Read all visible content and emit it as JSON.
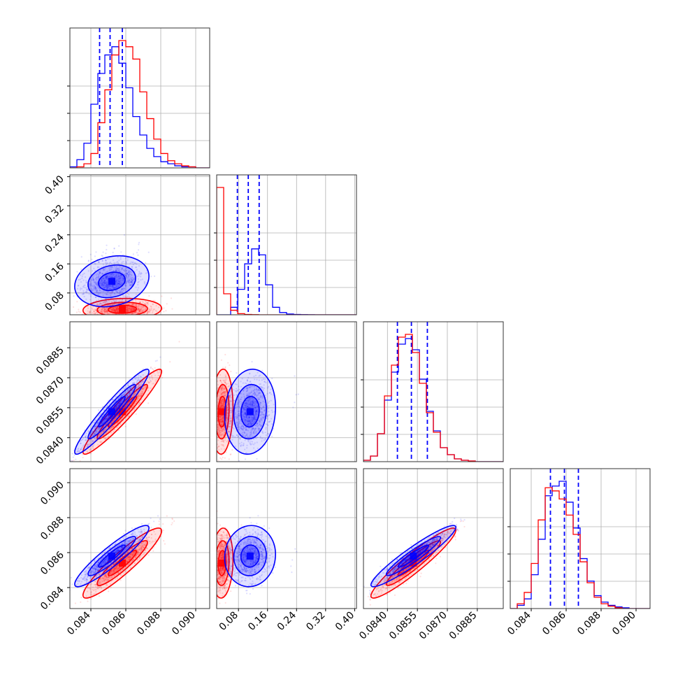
{
  "colors": {
    "blue": "#0000ff",
    "red": "#ff0000",
    "grid": "#b0b0b0",
    "axis": "#000000"
  },
  "chart_data": {
    "type": "corner",
    "grid": true,
    "n_params": 4,
    "params": [
      {
        "range": [
          0.0828,
          0.0908
        ],
        "ticks": [
          "0.084",
          "0.086",
          "0.088",
          "0.090"
        ],
        "tick_values": [
          0.084,
          0.086,
          0.088,
          0.09
        ]
      },
      {
        "range": [
          0.02,
          0.405
        ],
        "ticks": [
          "0.08",
          "0.16",
          "0.24",
          "0.32",
          "0.40"
        ],
        "tick_values": [
          0.08,
          0.16,
          0.24,
          0.32,
          0.4
        ]
      },
      {
        "range": [
          0.0828,
          0.0898
        ],
        "ticks": [
          "0.0840",
          "0.0855",
          "0.0870",
          "0.0885"
        ],
        "tick_values": [
          0.084,
          0.0855,
          0.087,
          0.0885
        ]
      },
      {
        "range": [
          0.0828,
          0.0908
        ],
        "ticks": [
          "0.084",
          "0.086",
          "0.088",
          "0.090"
        ],
        "tick_values": [
          0.084,
          0.086,
          0.088,
          0.09
        ]
      }
    ],
    "series": [
      {
        "color": "blue",
        "means": [
          0.0852,
          0.112,
          0.0853,
          0.0858
        ],
        "sds": [
          0.00085,
          0.028,
          0.00085,
          0.0007
        ],
        "quantiles": [
          [
            0.0845,
            0.0851,
            0.0858
          ],
          [
            0.077,
            0.107,
            0.137
          ],
          [
            0.0845,
            0.0852,
            0.086
          ],
          [
            0.0851,
            0.0859,
            0.0867
          ]
        ],
        "hist": [
          [
            1,
            8,
            24,
            62,
            92,
            110,
            118,
            102,
            78,
            50,
            32,
            19,
            11,
            6,
            4,
            2,
            1,
            1,
            0,
            0
          ],
          [
            0,
            0,
            10,
            34,
            68,
            88,
            80,
            40,
            10,
            3,
            1,
            0.5,
            0.2,
            0.1,
            0,
            0,
            0,
            0,
            0,
            0
          ],
          [
            2,
            8,
            40,
            88,
            128,
            168,
            176,
            160,
            118,
            72,
            44,
            20,
            10,
            4,
            2,
            1,
            0,
            0,
            0,
            0
          ],
          [
            0,
            4,
            12,
            42,
            86,
            140,
            152,
            158,
            132,
            100,
            62,
            34,
            16,
            8,
            4,
            2,
            1,
            0,
            0,
            0
          ]
        ]
      },
      {
        "color": "red",
        "means": [
          0.0858,
          0.035,
          0.0853,
          0.0854
        ],
        "sds": [
          0.0009,
          0.012,
          0.00085,
          0.0008
        ],
        "hist": [
          [
            0,
            1,
            4,
            14,
            44,
            76,
            110,
            124,
            118,
            106,
            74,
            48,
            28,
            14,
            7,
            4,
            2,
            1,
            0,
            0
          ],
          [
            170,
            28,
            6,
            1.5,
            0.5,
            0.2,
            0,
            0,
            0,
            0,
            0,
            0,
            0,
            0,
            0,
            0,
            0,
            0,
            0,
            0
          ],
          [
            2,
            8,
            40,
            94,
            138,
            178,
            182,
            156,
            112,
            70,
            42,
            20,
            10,
            4,
            2,
            1,
            0,
            0,
            0,
            0
          ],
          [
            0,
            6,
            20,
            56,
            110,
            150,
            146,
            136,
            116,
            92,
            58,
            32,
            14,
            6,
            3,
            1,
            0,
            0,
            0,
            0
          ]
        ]
      }
    ],
    "correlations": {
      "1-0": {
        "blue": 0.2,
        "red": 0.1
      },
      "2-0": {
        "blue": 0.95,
        "red": 0.95
      },
      "2-1": {
        "blue": 0.1,
        "red": 0.1
      },
      "3-0": {
        "blue": 0.92,
        "red": 0.92
      },
      "3-1": {
        "blue": 0.05,
        "red": 0.1
      },
      "3-2": {
        "blue": 0.94,
        "red": 0.94
      }
    }
  }
}
